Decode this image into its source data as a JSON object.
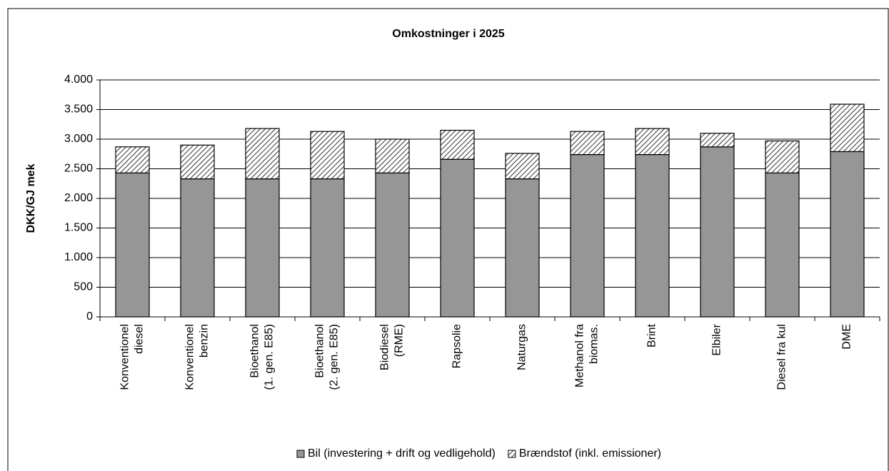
{
  "chart_data": {
    "type": "stacked-bar",
    "title": "Omkostninger i 2025",
    "y_label": "DKK/GJ mek",
    "categories": [
      [
        "Konventionel",
        "diesel"
      ],
      [
        "Konventionel",
        "benzin"
      ],
      [
        "Bioethanol",
        "(1. gen. E85)"
      ],
      [
        "Bioethanol",
        "(2. gen. E85)"
      ],
      [
        "Biodiesel",
        "(RME)"
      ],
      [
        "Rapsolie"
      ],
      [
        "Naturgas"
      ],
      [
        "Methanol fra",
        "biomas."
      ],
      [
        "Brint"
      ],
      [
        "Elbiler"
      ],
      [
        "Diesel fra kul"
      ],
      [
        "DME"
      ]
    ],
    "series": [
      {
        "name": "Bil (investering + drift og vedligehold)",
        "color": "#969696",
        "values": [
          2430,
          2330,
          2330,
          2330,
          2430,
          2660,
          2330,
          2740,
          2740,
          2870,
          2430,
          2790
        ]
      },
      {
        "name": "Brændstof (inkl. emissioner)",
        "color": "hatch",
        "values": [
          440,
          570,
          850,
          800,
          570,
          490,
          430,
          390,
          440,
          230,
          540,
          800
        ]
      }
    ],
    "ylim": [
      0,
      4000
    ],
    "yticks": [
      0,
      500,
      {
        "value": 1000,
        "label": "1.000"
      },
      {
        "value": 1500,
        "label": "1.500"
      },
      {
        "value": 2000,
        "label": "2.000"
      },
      {
        "value": 2500,
        "label": "2.500"
      },
      {
        "value": 3000,
        "label": "3.000"
      },
      {
        "value": 3500,
        "label": "3.500"
      },
      {
        "value": 4000,
        "label": "4.000"
      }
    ],
    "grid": true,
    "legend": "bottom"
  }
}
